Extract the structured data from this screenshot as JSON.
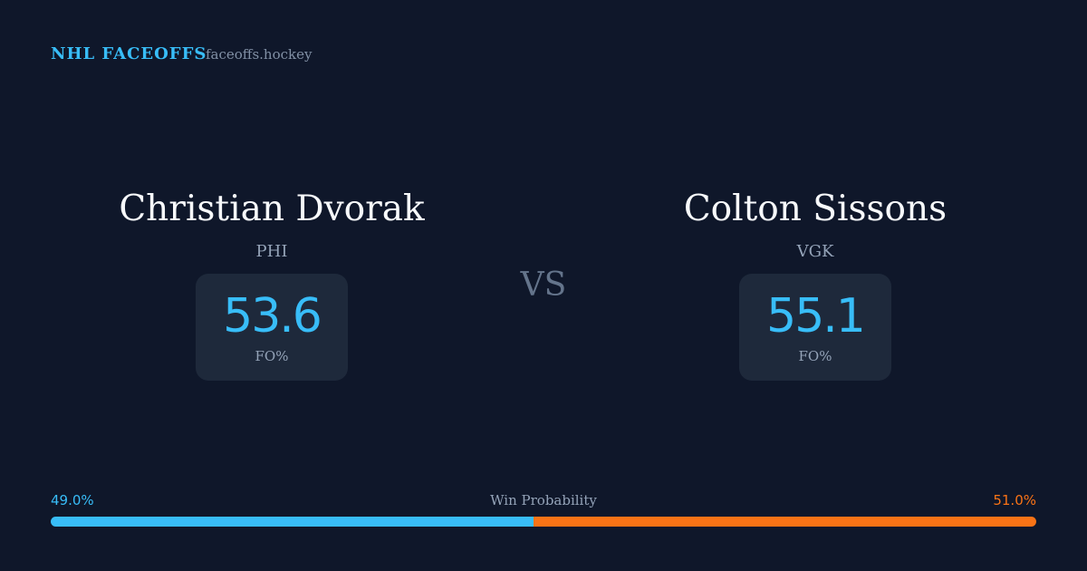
{
  "header": {
    "brand": "NHL FACEOFFS",
    "site": "faceoffs.hockey"
  },
  "players": [
    {
      "name": "Christian Dvorak",
      "team": "PHI",
      "stat_value": 53.6,
      "stat_label": "FO%"
    },
    {
      "name": "Colton Sissons",
      "team": "VGK",
      "stat_value": 55.1,
      "stat_label": "FO%"
    }
  ],
  "versus": "VS",
  "win_probability": {
    "title": "Win Probability",
    "left": {
      "value": 49,
      "label": "49.0%",
      "color": "#38bdf8"
    },
    "right": {
      "value": 51,
      "label": "51.0%",
      "color": "#f97316"
    }
  }
}
